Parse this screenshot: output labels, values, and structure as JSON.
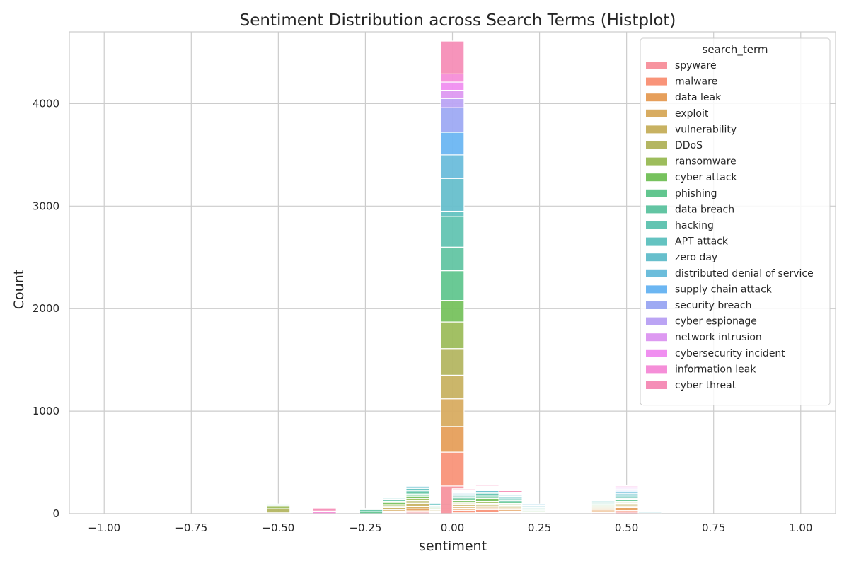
{
  "chart_data": {
    "type": "bar",
    "stacked": true,
    "title": "Sentiment Distribution across Search Terms (Histplot)",
    "xlabel": "sentiment",
    "ylabel": "Count",
    "xlim": [
      -1.1,
      1.1
    ],
    "ylim": [
      0,
      4700
    ],
    "x_ticks": [
      -1.0,
      -0.75,
      -0.5,
      -0.25,
      0.0,
      0.25,
      0.5,
      0.75,
      1.0
    ],
    "x_tick_labels": [
      "−1.00",
      "−0.75",
      "−0.50",
      "−0.25",
      "0.00",
      "0.25",
      "0.50",
      "0.75",
      "1.00"
    ],
    "y_ticks": [
      0,
      1000,
      2000,
      3000,
      4000
    ],
    "y_tick_labels": [
      "0",
      "1000",
      "2000",
      "3000",
      "4000"
    ],
    "grid": true,
    "legend_title": "search_term",
    "legend_position": "top-right",
    "bin_width": 0.0667,
    "series": [
      {
        "name": "spyware",
        "color": "#f7949f"
      },
      {
        "name": "malware",
        "color": "#f99479"
      },
      {
        "name": "data leak",
        "color": "#e69f5b"
      },
      {
        "name": "exploit",
        "color": "#d8ac61"
      },
      {
        "name": "vulnerability",
        "color": "#c8b262"
      },
      {
        "name": "DDoS",
        "color": "#b4b662"
      },
      {
        "name": "ransomware",
        "color": "#9dbd5c"
      },
      {
        "name": "cyber attack",
        "color": "#77c25e"
      },
      {
        "name": "phishing",
        "color": "#62c68f"
      },
      {
        "name": "data breach",
        "color": "#63c5a3"
      },
      {
        "name": "hacking",
        "color": "#63c4b2"
      },
      {
        "name": "APT attack",
        "color": "#64c3c1"
      },
      {
        "name": "zero day",
        "color": "#67bfcc"
      },
      {
        "name": "distributed denial of service",
        "color": "#6cbddb"
      },
      {
        "name": "supply chain attack",
        "color": "#6cb6f2"
      },
      {
        "name": "security breach",
        "color": "#9eaaf3"
      },
      {
        "name": "cyber espionage",
        "color": "#bba4f4"
      },
      {
        "name": "network intrusion",
        "color": "#dd99f1"
      },
      {
        "name": "cybersecurity incident",
        "color": "#f08ff0"
      },
      {
        "name": "information leak",
        "color": "#f58ed8"
      },
      {
        "name": "cyber threat",
        "color": "#f58eb7"
      }
    ],
    "bins": [
      {
        "x": -0.5,
        "values": [
          0,
          0,
          0,
          0,
          8,
          40,
          30,
          0,
          0,
          10,
          0,
          0,
          0,
          0,
          0,
          0,
          0,
          0,
          0,
          0,
          7
        ]
      },
      {
        "x": -0.367,
        "values": [
          0,
          0,
          0,
          0,
          0,
          0,
          0,
          0,
          0,
          0,
          0,
          0,
          0,
          0,
          0,
          0,
          0,
          0,
          0,
          25,
          30
        ]
      },
      {
        "x": -0.233,
        "values": [
          0,
          0,
          0,
          0,
          0,
          0,
          0,
          0,
          20,
          20,
          10,
          0,
          0,
          0,
          0,
          0,
          0,
          0,
          0,
          0,
          0
        ]
      },
      {
        "x": -0.167,
        "values": [
          10,
          5,
          10,
          15,
          20,
          15,
          15,
          20,
          10,
          15,
          10,
          10,
          5,
          0,
          0,
          0,
          0,
          0,
          0,
          0,
          0
        ]
      },
      {
        "x": -0.1,
        "values": [
          15,
          12,
          20,
          25,
          30,
          25,
          20,
          25,
          20,
          20,
          15,
          20,
          15,
          10,
          5,
          5,
          5,
          5,
          0,
          0,
          0
        ]
      },
      {
        "x": -0.033,
        "values": [
          5,
          5,
          5,
          10,
          10,
          5,
          5,
          10,
          10,
          10,
          5,
          15,
          10,
          5,
          0,
          0,
          0,
          0,
          0,
          0,
          0
        ]
      },
      {
        "x": 0.0,
        "values": [
          270,
          330,
          250,
          270,
          230,
          260,
          260,
          210,
          290,
          230,
          300,
          50,
          320,
          230,
          220,
          240,
          90,
          80,
          80,
          80,
          320
        ]
      },
      {
        "x": 0.033,
        "values": [
          8,
          25,
          20,
          20,
          15,
          15,
          10,
          15,
          15,
          15,
          15,
          10,
          10,
          10,
          5,
          5,
          5,
          5,
          5,
          5,
          10
        ]
      },
      {
        "x": 0.1,
        "values": [
          10,
          30,
          15,
          15,
          15,
          15,
          20,
          30,
          15,
          15,
          20,
          10,
          15,
          10,
          5,
          5,
          5,
          5,
          5,
          5,
          10
        ]
      },
      {
        "x": 0.167,
        "values": [
          10,
          15,
          15,
          15,
          15,
          10,
          10,
          10,
          15,
          15,
          15,
          15,
          10,
          10,
          5,
          5,
          5,
          5,
          5,
          5,
          15
        ]
      },
      {
        "x": 0.233,
        "values": [
          0,
          0,
          0,
          5,
          5,
          5,
          5,
          10,
          10,
          10,
          10,
          10,
          10,
          10,
          5,
          0,
          0,
          0,
          0,
          0,
          0
        ]
      },
      {
        "x": 0.3,
        "values": [
          0,
          0,
          0,
          0,
          0,
          0,
          0,
          0,
          0,
          0,
          0,
          0,
          0,
          0,
          0,
          0,
          0,
          0,
          0,
          0,
          0
        ]
      },
      {
        "x": 0.433,
        "values": [
          10,
          10,
          15,
          10,
          10,
          10,
          10,
          10,
          10,
          10,
          10,
          10,
          5,
          5,
          5,
          5,
          5,
          5,
          5,
          5,
          5
        ]
      },
      {
        "x": 0.5,
        "values": [
          15,
          15,
          30,
          15,
          15,
          10,
          10,
          10,
          15,
          15,
          15,
          15,
          15,
          15,
          10,
          10,
          10,
          10,
          10,
          10,
          5
        ]
      },
      {
        "x": 0.567,
        "values": [
          0,
          0,
          0,
          0,
          0,
          0,
          0,
          0,
          0,
          0,
          0,
          5,
          10,
          10,
          5,
          0,
          0,
          0,
          0,
          0,
          0
        ]
      }
    ]
  }
}
